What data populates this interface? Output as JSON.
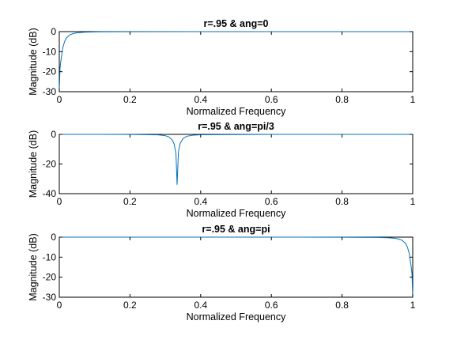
{
  "figure": {
    "background": "#ffffff",
    "axes_color": "#000000",
    "line_color": "#0072bd"
  },
  "chart_data": [
    {
      "type": "line",
      "title": "r=.95 & ang=0",
      "xlabel": "Normalized Frequency",
      "ylabel": "Magnitude (dB)",
      "xlim": [
        0,
        1
      ],
      "ylim": [
        -30,
        0
      ],
      "xticks": [
        "0",
        "0.2",
        "0.4",
        "0.6",
        "0.8",
        "1"
      ],
      "yticks": [
        "0",
        "-10",
        "-20",
        "-30"
      ],
      "grid": false,
      "legend": "none",
      "notch": {
        "type": "lowfreq",
        "r": 0.95,
        "angle": 0,
        "depth_db": -30
      },
      "series": [
        {
          "x": [
            0.0,
            0.002,
            0.005,
            0.01,
            0.015,
            0.02,
            0.03,
            0.04,
            0.05,
            0.07,
            0.1,
            0.2,
            0.4,
            0.6,
            0.8,
            1.0
          ],
          "y": [
            -30,
            -18.5,
            -13.9,
            -8.0,
            -5.0,
            -3.2,
            -1.6,
            -0.95,
            -0.6,
            -0.3,
            -0.14,
            -0.04,
            -0.01,
            0,
            0,
            0
          ]
        }
      ]
    },
    {
      "type": "line",
      "title": "r=.95 & ang=pi/3",
      "xlabel": "Normalized Frequency",
      "ylabel": "Magnitude (dB)",
      "xlim": [
        0,
        1
      ],
      "ylim": [
        -40,
        0
      ],
      "xticks": [
        "0",
        "0.2",
        "0.4",
        "0.6",
        "0.8",
        "1"
      ],
      "yticks": [
        "0",
        "-20",
        "-40"
      ],
      "grid": false,
      "legend": "none",
      "notch": {
        "type": "mid",
        "r": 0.95,
        "center": 0.3333,
        "depth_db": -34
      },
      "series": [
        {
          "x": [
            0.0,
            0.2,
            0.28,
            0.3,
            0.31,
            0.32,
            0.325,
            0.33,
            0.3333,
            0.337,
            0.342,
            0.35,
            0.36,
            0.38,
            0.4,
            0.6,
            1.0
          ],
          "y": [
            0,
            -0.05,
            -0.35,
            -0.9,
            -1.7,
            -3.9,
            -6.6,
            -12.8,
            -34,
            -12.0,
            -6.1,
            -2.8,
            -1.3,
            -0.5,
            -0.25,
            0,
            0
          ]
        }
      ]
    },
    {
      "type": "line",
      "title": "r=.95 & ang=pi",
      "xlabel": "Normalized Frequency",
      "ylabel": "Magnitude (dB)",
      "xlim": [
        0,
        1
      ],
      "ylim": [
        -30,
        0
      ],
      "xticks": [
        "0",
        "0.2",
        "0.4",
        "0.6",
        "0.8",
        "1"
      ],
      "yticks": [
        "0",
        "-10",
        "-20",
        "-30"
      ],
      "grid": false,
      "legend": "none",
      "notch": {
        "type": "highfreq",
        "r": 0.95,
        "angle": "pi",
        "depth_db": -30
      },
      "series": [
        {
          "x": [
            0.0,
            0.2,
            0.4,
            0.6,
            0.8,
            0.9,
            0.93,
            0.95,
            0.96,
            0.97,
            0.98,
            0.985,
            0.99,
            0.995,
            0.998,
            1.0
          ],
          "y": [
            0,
            0,
            0,
            0,
            -0.04,
            -0.14,
            -0.3,
            -0.6,
            -0.95,
            -1.6,
            -3.2,
            -5.0,
            -8.0,
            -13.9,
            -18.5,
            -30
          ]
        }
      ]
    }
  ]
}
